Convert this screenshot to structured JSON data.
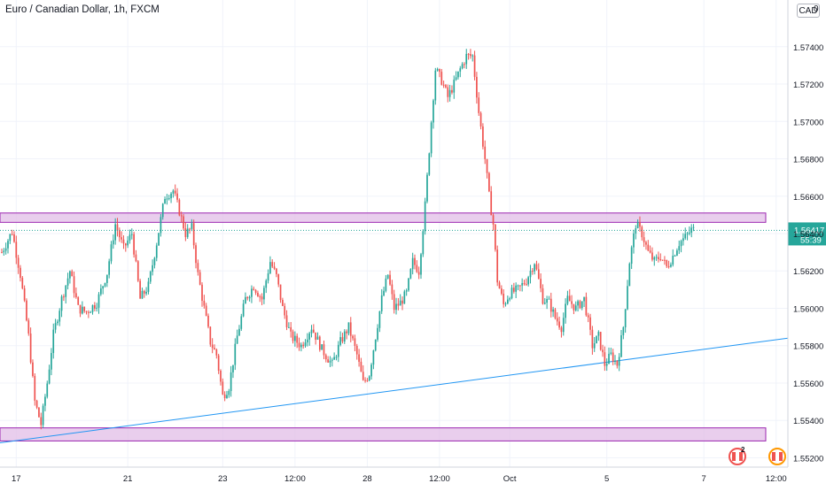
{
  "header": {
    "title": "Euro / Canadian Dollar, 1h, FXCM",
    "currency_button": "CAD",
    "corner_value": "0"
  },
  "price_axis": {
    "ticks": [
      "1.57400",
      "1.57200",
      "1.57000",
      "1.56800",
      "1.56600",
      "1.56400",
      "1.56200",
      "1.56000",
      "1.55800",
      "1.55600",
      "1.55400",
      "1.55200"
    ]
  },
  "time_axis": {
    "labels": [
      "17",
      "21",
      "23",
      "12:00",
      "28",
      "12:00",
      "Oct",
      "5",
      "7",
      "12:00"
    ]
  },
  "last_price": {
    "price": "1.56417",
    "countdown": "55:39",
    "color": "#26a69a"
  },
  "events": {
    "badge_count": "2"
  },
  "colors": {
    "up": "#26a69a",
    "down": "#ef5350",
    "zone_fill": "#e1bee7",
    "zone_border": "#9c27b0",
    "trendline": "#2196f3",
    "grid": "#f0f3fa"
  },
  "chart_data": {
    "type": "candlestick",
    "title": "Euro / Canadian Dollar, 1h, FXCM",
    "symbol": "EURCAD",
    "interval": "1h",
    "source": "FXCM",
    "ylim": [
      1.5515,
      1.5765
    ],
    "x_labels": [
      "17",
      "21",
      "23",
      "12:00",
      "28",
      "12:00",
      "Oct",
      "5",
      "7",
      "12:00"
    ],
    "last_price": 1.56417,
    "zones": [
      {
        "low": 1.5646,
        "high": 1.5651
      },
      {
        "low": 1.5529,
        "high": 1.5536
      }
    ],
    "trendline": {
      "start": 1.5528,
      "end": 1.5584
    },
    "path": [
      [
        0,
        1.563
      ],
      [
        5,
        1.5641
      ],
      [
        9,
        1.5618
      ],
      [
        13,
        1.5585
      ],
      [
        16,
        1.555
      ],
      [
        19,
        1.5538
      ],
      [
        22,
        1.556
      ],
      [
        25,
        1.5586
      ],
      [
        29,
        1.5605
      ],
      [
        33,
        1.562
      ],
      [
        37,
        1.56
      ],
      [
        41,
        1.5598
      ],
      [
        46,
        1.5603
      ],
      [
        51,
        1.5619
      ],
      [
        55,
        1.5645
      ],
      [
        59,
        1.5632
      ],
      [
        63,
        1.564
      ],
      [
        67,
        1.5605
      ],
      [
        71,
        1.5612
      ],
      [
        75,
        1.5635
      ],
      [
        79,
        1.566
      ],
      [
        83,
        1.5663
      ],
      [
        86,
        1.5652
      ],
      [
        89,
        1.564
      ],
      [
        92,
        1.5643
      ],
      [
        95,
        1.5618
      ],
      [
        98,
        1.56
      ],
      [
        101,
        1.5582
      ],
      [
        104,
        1.5575
      ],
      [
        107,
        1.5553
      ],
      [
        110,
        1.5558
      ],
      [
        114,
        1.5585
      ],
      [
        118,
        1.5605
      ],
      [
        122,
        1.5612
      ],
      [
        126,
        1.5605
      ],
      [
        130,
        1.5625
      ],
      [
        133,
        1.5617
      ],
      [
        136,
        1.56
      ],
      [
        140,
        1.5585
      ],
      [
        145,
        1.558
      ],
      [
        150,
        1.559
      ],
      [
        155,
        1.5578
      ],
      [
        160,
        1.557
      ],
      [
        164,
        1.5582
      ],
      [
        168,
        1.559
      ],
      [
        172,
        1.5575
      ],
      [
        175,
        1.556
      ],
      [
        178,
        1.5565
      ],
      [
        181,
        1.5585
      ],
      [
        184,
        1.5605
      ],
      [
        187,
        1.5618
      ],
      [
        190,
        1.56
      ],
      [
        193,
        1.5603
      ],
      [
        196,
        1.5608
      ],
      [
        199,
        1.5625
      ],
      [
        202,
        1.562
      ],
      [
        205,
        1.5655
      ],
      [
        208,
        1.57
      ],
      [
        210,
        1.5728
      ],
      [
        213,
        1.5722
      ],
      [
        216,
        1.5713
      ],
      [
        219,
        1.572
      ],
      [
        222,
        1.5728
      ],
      [
        225,
        1.5735
      ],
      [
        228,
        1.5735
      ],
      [
        231,
        1.5705
      ],
      [
        234,
        1.568
      ],
      [
        236,
        1.566
      ],
      [
        238,
        1.5645
      ],
      [
        240,
        1.5615
      ],
      [
        243,
        1.5602
      ],
      [
        246,
        1.5608
      ],
      [
        250,
        1.561
      ],
      [
        254,
        1.5615
      ],
      [
        258,
        1.5625
      ],
      [
        262,
        1.5605
      ],
      [
        265,
        1.5603
      ],
      [
        268,
        1.5595
      ],
      [
        271,
        1.559
      ],
      [
        274,
        1.5605
      ],
      [
        278,
        1.56
      ],
      [
        282,
        1.5605
      ],
      [
        286,
        1.558
      ],
      [
        289,
        1.5585
      ],
      [
        292,
        1.557
      ],
      [
        295,
        1.5575
      ],
      [
        298,
        1.557
      ],
      [
        301,
        1.559
      ],
      [
        304,
        1.5625
      ],
      [
        307,
        1.5645
      ],
      [
        310,
        1.564
      ],
      [
        313,
        1.563
      ],
      [
        316,
        1.5625
      ],
      [
        319,
        1.5628
      ],
      [
        322,
        1.5622
      ],
      [
        325,
        1.5628
      ],
      [
        328,
        1.5635
      ],
      [
        331,
        1.5638
      ],
      [
        334,
        1.5642
      ]
    ]
  }
}
